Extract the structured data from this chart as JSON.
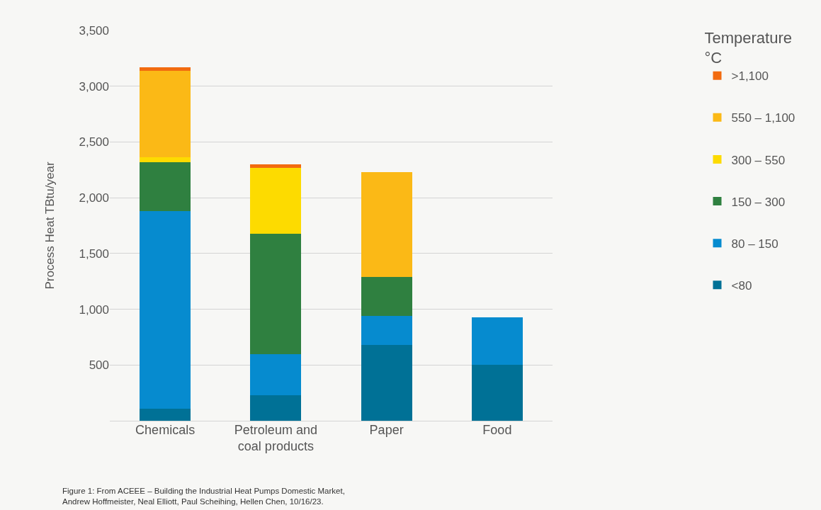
{
  "chart_data": {
    "type": "bar",
    "stacked": true,
    "ylabel": "Process Heat TBtu/year",
    "legend_title": "Temperature\n°C",
    "categories": [
      "Chemicals",
      "Petroleum and\ncoal products",
      "Paper",
      "Food"
    ],
    "series": [
      {
        "name": "<80",
        "color": "#007196",
        "values": [
          110,
          230,
          680,
          500
        ]
      },
      {
        "name": "80 – 150",
        "color": "#068bcf",
        "values": [
          1770,
          370,
          260,
          430
        ]
      },
      {
        "name": "150 – 300",
        "color": "#2f8040",
        "values": [
          440,
          1080,
          350,
          0
        ]
      },
      {
        "name": "300 – 550",
        "color": "#fddb00",
        "values": [
          40,
          590,
          0,
          0
        ]
      },
      {
        "name": "550 – 1,100",
        "color": "#fbb916",
        "values": [
          780,
          0,
          940,
          0
        ]
      },
      {
        "name": ">1,100",
        "color": "#f26b0f",
        "values": [
          30,
          30,
          0,
          0
        ]
      }
    ],
    "ylim": [
      0,
      3500
    ],
    "yticks": [
      {
        "value": 0,
        "label": null
      },
      {
        "value": 500,
        "label": "500"
      },
      {
        "value": 1000,
        "label": "1,000"
      },
      {
        "value": 1500,
        "label": "1,500"
      },
      {
        "value": 2000,
        "label": "2,000"
      },
      {
        "value": 2500,
        "label": "2,500"
      },
      {
        "value": 3000,
        "label": "3,000"
      },
      {
        "value": 3500,
        "label": "3,500"
      }
    ],
    "grid": "y",
    "legend": "right",
    "annotations": [
      "Figure 1: From ACEEE – Building the Industrial Heat Pumps Domestic Market,\nAndrew Hoffmeister, Neal Elliott, Paul Scheihing, Hellen Chen, 10/16/23."
    ]
  }
}
